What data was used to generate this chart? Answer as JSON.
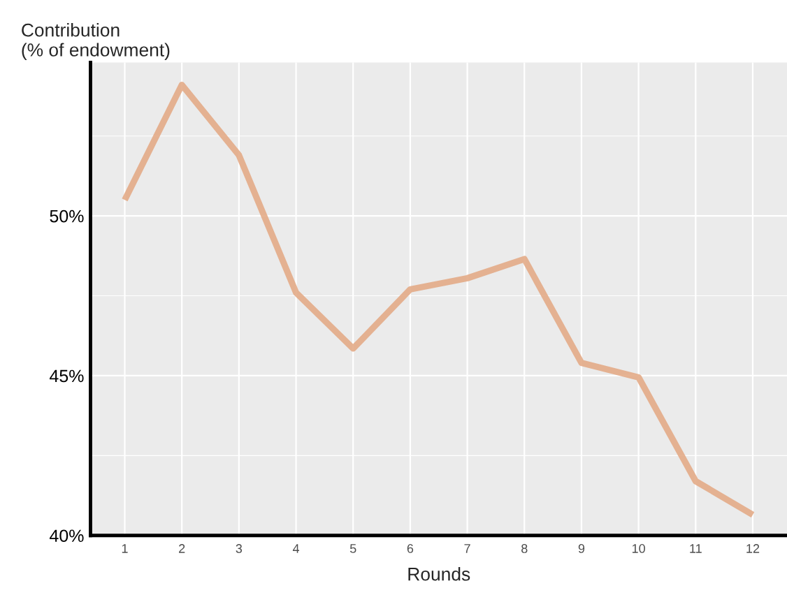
{
  "chart_data": {
    "type": "line",
    "ylabel": "Contribution\n(% of endowment)",
    "xlabel": "Rounds",
    "x": [
      1,
      2,
      3,
      4,
      5,
      6,
      7,
      8,
      9,
      10,
      11,
      12
    ],
    "series": [
      {
        "color": "#e3ab87",
        "values": [
          50.5,
          54.1,
          51.9,
          47.6,
          45.85,
          47.7,
          48.05,
          48.65,
          45.4,
          44.95,
          41.7,
          40.65
        ]
      }
    ],
    "xlim": [
      0.4,
      12.6
    ],
    "ylim": [
      40,
      54.8
    ],
    "xticks": [
      1,
      2,
      3,
      4,
      5,
      6,
      7,
      8,
      9,
      10,
      11,
      12
    ],
    "yticks": [
      {
        "value": 40,
        "label": "40%"
      },
      {
        "value": 45,
        "label": "45%"
      },
      {
        "value": 50,
        "label": "50%"
      }
    ],
    "grid": true,
    "legend": false,
    "marker": "none",
    "line_style": "solid"
  }
}
